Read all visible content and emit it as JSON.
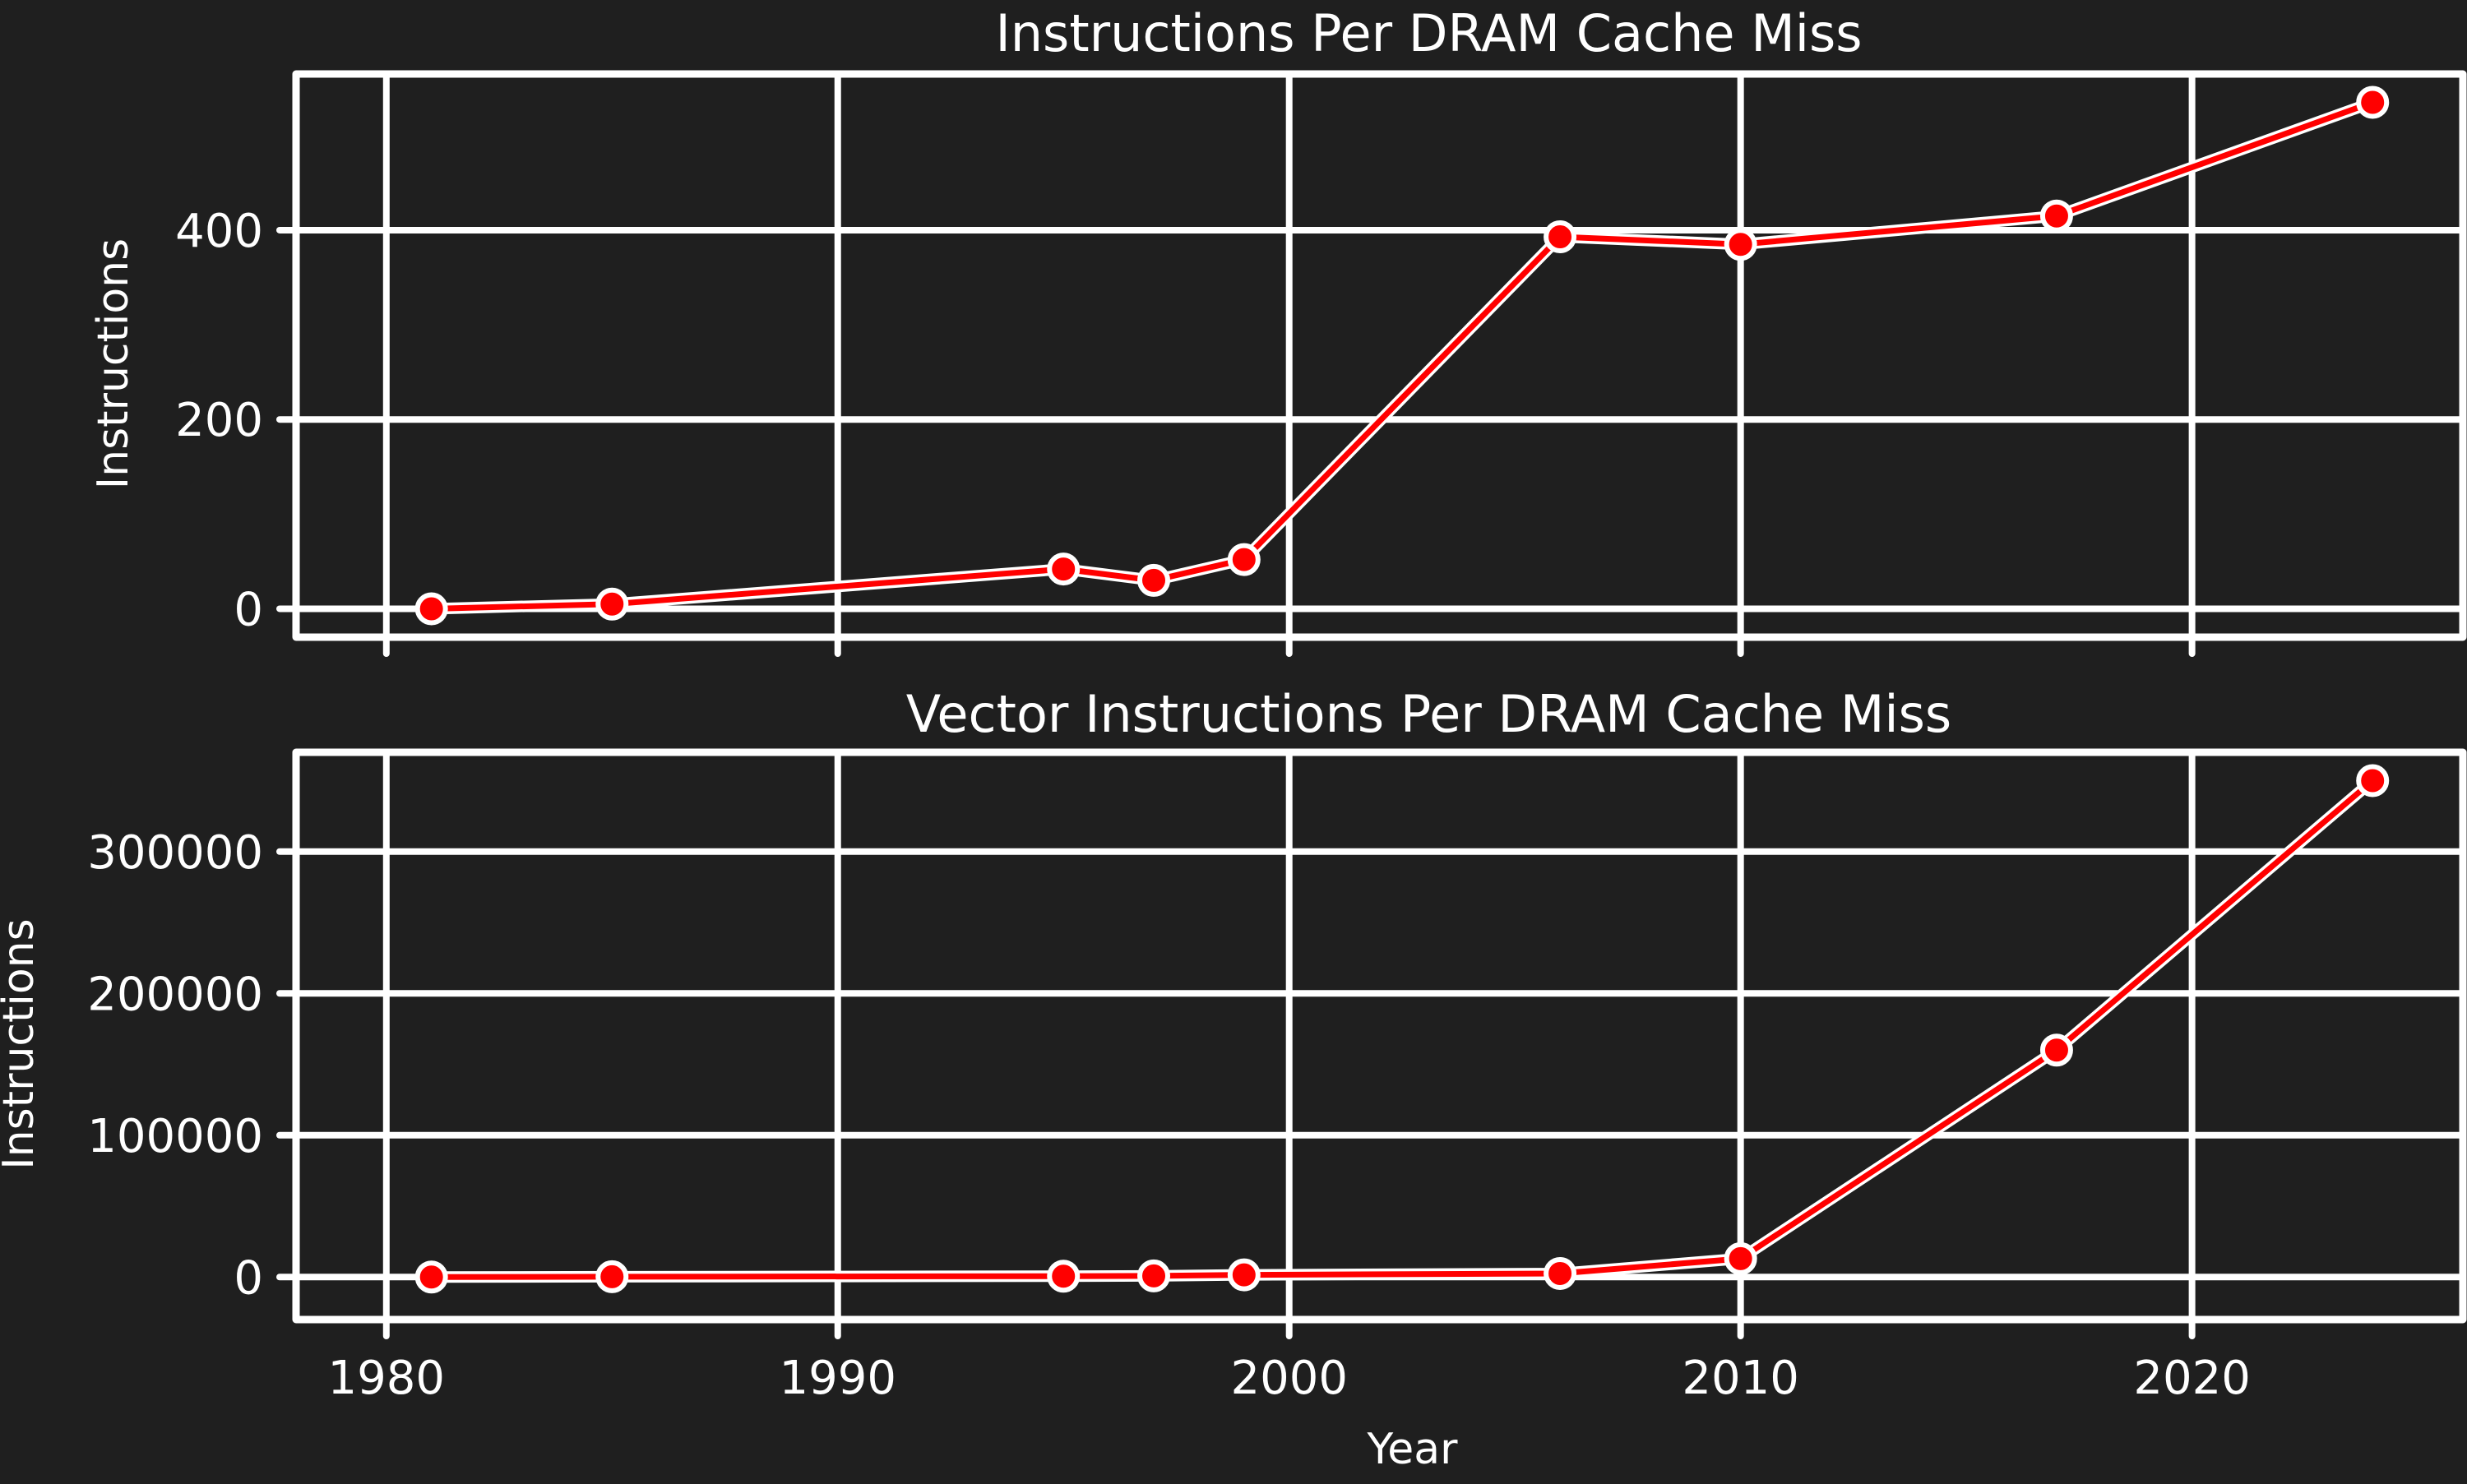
{
  "chart_data": [
    {
      "type": "line",
      "title": "Instructions Per DRAM Cache Miss",
      "xlabel": "",
      "ylabel": "Instructions",
      "x": [
        1981,
        1985,
        1995,
        1997,
        1999,
        2006,
        2010,
        2017,
        2024
      ],
      "series": [
        {
          "values": [
            0,
            5,
            42,
            30,
            52,
            393,
            385,
            415,
            535
          ]
        }
      ],
      "xlim": [
        1978,
        2026
      ],
      "ylim": [
        -30,
        565
      ],
      "yticks": [
        0,
        200,
        400
      ],
      "ytick_labels": [
        "0",
        "200",
        "400"
      ],
      "xticks": [
        1980,
        1990,
        2000,
        2010,
        2020
      ],
      "grid": true,
      "line_color": "#ff0000",
      "marker_color": "#ff0000"
    },
    {
      "type": "line",
      "title": "Vector Instructions Per DRAM Cache Miss",
      "xlabel": "Year",
      "ylabel": "Instructions",
      "x": [
        1981,
        1985,
        1995,
        1997,
        1999,
        2006,
        2010,
        2017,
        2024
      ],
      "series": [
        {
          "values": [
            0,
            200,
            600,
            800,
            1500,
            2500,
            13000,
            160000,
            350000
          ]
        }
      ],
      "xlim": [
        1978,
        2026
      ],
      "ylim": [
        -30000,
        370000
      ],
      "yticks": [
        0,
        100000,
        200000,
        300000
      ],
      "ytick_labels": [
        "0",
        "100000",
        "200000",
        "300000"
      ],
      "xticks": [
        1980,
        1990,
        2000,
        2010,
        2020
      ],
      "xtick_labels": [
        "1980",
        "1990",
        "2000",
        "2010",
        "2020"
      ],
      "grid": true,
      "line_color": "#ff0000",
      "marker_color": "#ff0000"
    }
  ]
}
